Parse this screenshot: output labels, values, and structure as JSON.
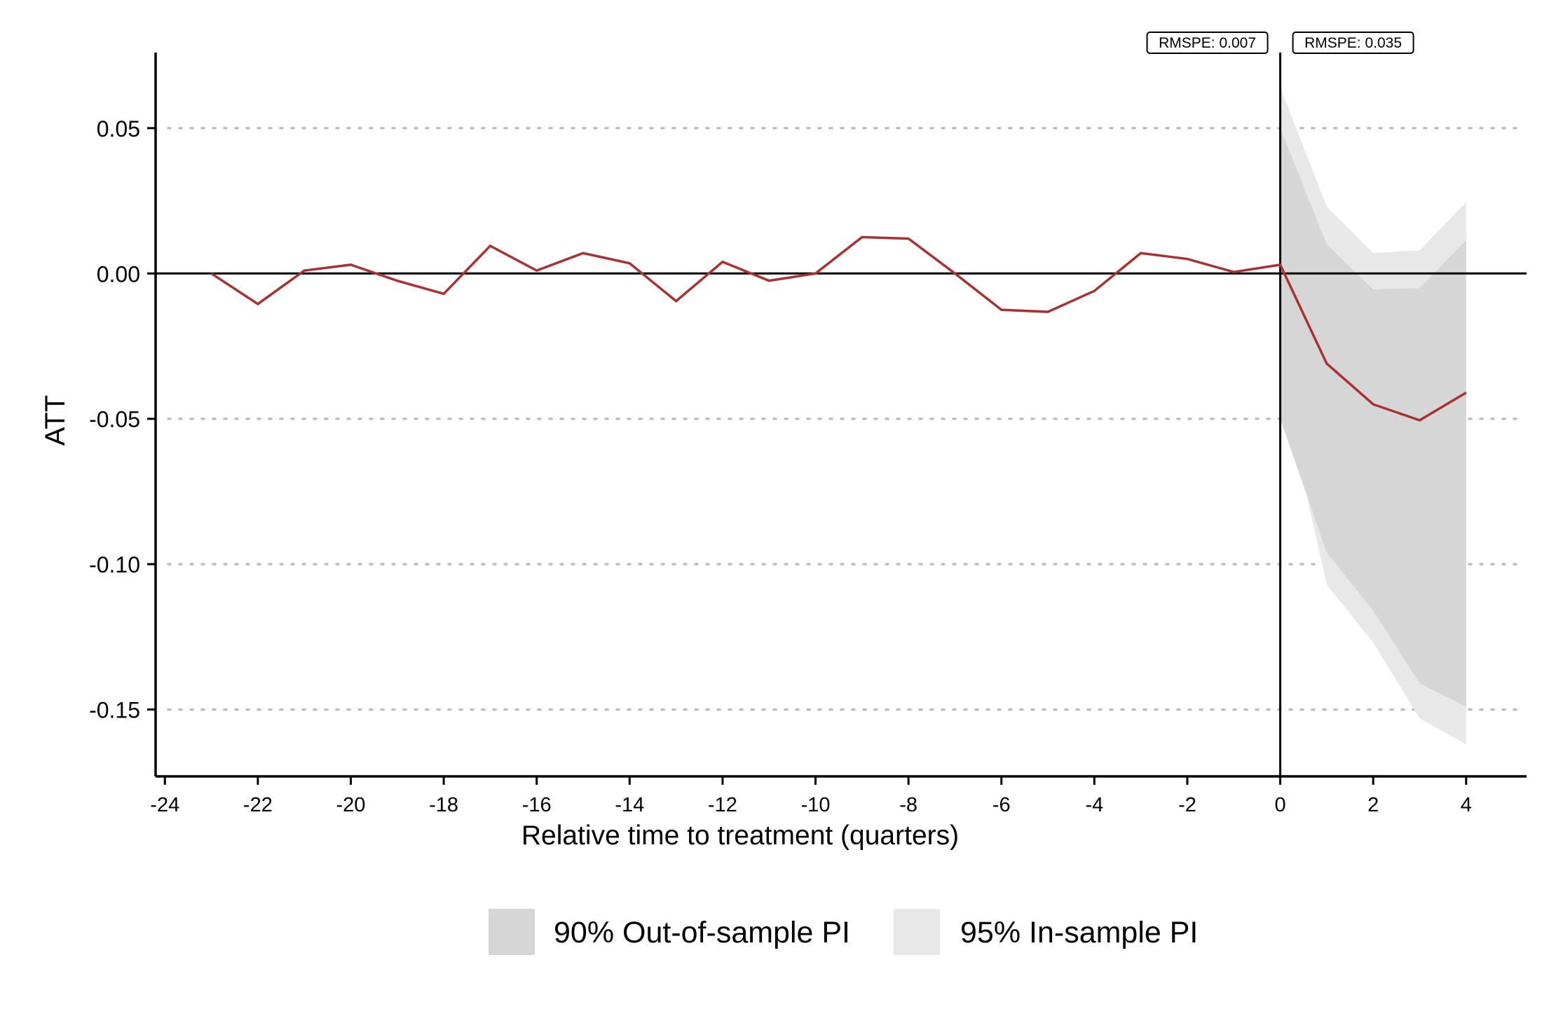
{
  "chart_data": {
    "type": "line",
    "title": "",
    "xlabel": "Relative time to treatment (quarters)",
    "ylabel": "ATT",
    "xlim": [
      -24.2,
      5.3
    ],
    "ylim": [
      -0.173,
      0.076
    ],
    "x_ticks": [
      -24,
      -22,
      -20,
      -18,
      -16,
      -14,
      -12,
      -10,
      -8,
      -6,
      -4,
      -2,
      0,
      2,
      4
    ],
    "x_tick_labels": [
      "-24",
      "-22",
      "-20",
      "-18",
      "-16",
      "-14",
      "-12",
      "-10",
      "-8",
      "-6",
      "-4",
      "-2",
      "0",
      "2",
      "4"
    ],
    "y_ticks": [
      0.05,
      0.0,
      -0.05,
      -0.1,
      -0.15
    ],
    "y_tick_labels": [
      "0.05",
      "0.00",
      "-0.05",
      "-0.10",
      "-0.15"
    ],
    "grid": "horizontal dotted gray at y ticks",
    "reference_lines": {
      "hline": 0,
      "vline": 0
    },
    "series": [
      {
        "type": "line",
        "color": "#a83232",
        "x": [
          -23,
          -22,
          -21,
          -20,
          -19,
          -18,
          -17,
          -16,
          -15,
          -14,
          -13,
          -12,
          -11,
          -10,
          -9,
          -8,
          -7,
          -6,
          -5,
          -4,
          -3,
          -2,
          -1,
          0,
          1,
          2,
          3,
          4
        ],
        "values": [
          0.0,
          -0.0105,
          0.001,
          0.003,
          -0.0025,
          -0.007,
          0.0095,
          0.001,
          0.007,
          0.0035,
          -0.0095,
          0.004,
          -0.0025,
          0.0,
          0.0125,
          0.012,
          0.0,
          -0.0125,
          -0.0132,
          -0.006,
          0.007,
          0.005,
          0.0005,
          0.003,
          -0.031,
          -0.045,
          -0.0505,
          -0.041
        ]
      }
    ],
    "bands": [
      {
        "name": "95% In-sample PI",
        "color": "#e8e8e8",
        "x": [
          0,
          1,
          2,
          3,
          4
        ],
        "lower": [
          -0.036,
          -0.107,
          -0.127,
          -0.153,
          -0.162
        ],
        "upper": [
          0.064,
          0.023,
          0.007,
          0.008,
          0.0245
        ]
      },
      {
        "name": "90% Out-of-sample PI",
        "color": "#d6d6d6",
        "x": [
          0,
          1,
          2,
          3,
          4
        ],
        "lower": [
          -0.05,
          -0.096,
          -0.116,
          -0.141,
          -0.149
        ],
        "upper": [
          0.05,
          0.01,
          -0.0055,
          -0.005,
          0.0115
        ]
      }
    ],
    "annotations": [
      {
        "text": "RMSPE: 0.007",
        "anchor": "left of treatment line"
      },
      {
        "text": "RMSPE: 0.035",
        "anchor": "right of treatment line"
      }
    ],
    "legend": {
      "position": "bottom",
      "items": [
        {
          "label": "90% Out-of-sample PI",
          "color": "#d6d6d6"
        },
        {
          "label": "95% In-sample PI",
          "color": "#e8e8e8"
        }
      ]
    }
  }
}
